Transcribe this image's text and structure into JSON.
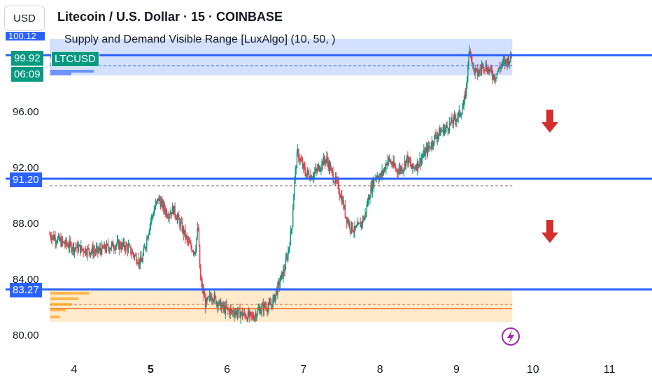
{
  "header": {
    "currency": "USD",
    "title": "Litecoin / U.S. Dollar · 15 · COINBASE",
    "indicator": "Supply and Demand Visible Range [LuxAlgo] (10, 50, )"
  },
  "price_tags": {
    "current_price": "99.92",
    "countdown": "06:09",
    "symbol": "LTCUSD",
    "top_partial": "100.12",
    "level_mid": "91.20",
    "level_low": "83.27"
  },
  "colors": {
    "up": "#089981",
    "down": "#f23645",
    "level_line": "#2962ff",
    "supply_zone": "#2962ff",
    "demand_zone": "#ff9800",
    "arrow": "#d32f2f",
    "lightning": "#9c27b0"
  },
  "chart_data": {
    "type": "candlestick",
    "title": "Litecoin / U.S. Dollar · 15 · COINBASE",
    "xlabel": "",
    "ylabel": "",
    "x_ticks": [
      "4",
      "5",
      "6",
      "7",
      "8",
      "9",
      "10",
      "11"
    ],
    "x_tick_bold": "5",
    "y_ticks": [
      "80.00",
      "84.00",
      "88.00",
      "92.00",
      "96.00"
    ],
    "ylim": [
      79.0,
      102.5
    ],
    "x_range_days": [
      3.65,
      11.75
    ],
    "price_path": [
      [
        3.68,
        87.2
      ],
      [
        3.85,
        86.6
      ],
      [
        4.0,
        86.3
      ],
      [
        4.15,
        86.1
      ],
      [
        4.3,
        86.0
      ],
      [
        4.45,
        86.3
      ],
      [
        4.55,
        86.5
      ],
      [
        4.7,
        86.3
      ],
      [
        4.8,
        85.6
      ],
      [
        4.88,
        85.2
      ],
      [
        4.93,
        86.4
      ],
      [
        5.0,
        88.2
      ],
      [
        5.05,
        89.0
      ],
      [
        5.1,
        89.8
      ],
      [
        5.15,
        89.3
      ],
      [
        5.22,
        88.7
      ],
      [
        5.3,
        89.0
      ],
      [
        5.4,
        87.8
      ],
      [
        5.5,
        86.5
      ],
      [
        5.58,
        86.0
      ],
      [
        5.62,
        87.8
      ],
      [
        5.65,
        84.0
      ],
      [
        5.72,
        82.2
      ],
      [
        5.8,
        82.9
      ],
      [
        5.88,
        82.3
      ],
      [
        5.95,
        81.9
      ],
      [
        6.05,
        81.7
      ],
      [
        6.15,
        81.6
      ],
      [
        6.25,
        81.4
      ],
      [
        6.33,
        81.3
      ],
      [
        6.42,
        81.8
      ],
      [
        6.5,
        82.1
      ],
      [
        6.55,
        82.0
      ],
      [
        6.6,
        82.4
      ],
      [
        6.65,
        83.2
      ],
      [
        6.7,
        84.0
      ],
      [
        6.75,
        84.7
      ],
      [
        6.8,
        86.0
      ],
      [
        6.85,
        88.0
      ],
      [
        6.88,
        91.0
      ],
      [
        6.92,
        93.1
      ],
      [
        6.97,
        92.3
      ],
      [
        7.03,
        91.6
      ],
      [
        7.1,
        91.4
      ],
      [
        7.18,
        91.8
      ],
      [
        7.25,
        92.4
      ],
      [
        7.3,
        92.6
      ],
      [
        7.37,
        91.6
      ],
      [
        7.43,
        90.9
      ],
      [
        7.5,
        89.8
      ],
      [
        7.55,
        88.6
      ],
      [
        7.6,
        87.9
      ],
      [
        7.67,
        87.5
      ],
      [
        7.73,
        87.8
      ],
      [
        7.8,
        88.5
      ],
      [
        7.85,
        89.8
      ],
      [
        7.9,
        90.8
      ],
      [
        7.95,
        91.5
      ],
      [
        8.0,
        91.3
      ],
      [
        8.05,
        91.8
      ],
      [
        8.1,
        92.6
      ],
      [
        8.18,
        92.1
      ],
      [
        8.22,
        91.8
      ],
      [
        8.3,
        92.0
      ],
      [
        8.35,
        92.7
      ],
      [
        8.42,
        91.9
      ],
      [
        8.5,
        92.3
      ],
      [
        8.58,
        93.0
      ],
      [
        8.65,
        93.5
      ],
      [
        8.72,
        94.2
      ],
      [
        8.8,
        94.6
      ],
      [
        8.88,
        94.9
      ],
      [
        8.95,
        95.3
      ],
      [
        9.0,
        95.6
      ],
      [
        9.05,
        95.9
      ],
      [
        9.1,
        96.6
      ],
      [
        9.13,
        97.8
      ],
      [
        9.15,
        99.5
      ],
      [
        9.18,
        100.6
      ],
      [
        9.22,
        99.0
      ],
      [
        9.28,
        98.7
      ],
      [
        9.35,
        99.4
      ],
      [
        9.42,
        99.0
      ],
      [
        9.5,
        98.5
      ],
      [
        9.58,
        99.3
      ],
      [
        9.65,
        99.6
      ],
      [
        9.72,
        99.92
      ]
    ],
    "levels": [
      {
        "value": 100.05,
        "label": ""
      },
      {
        "value": 91.2,
        "label": "91.20"
      },
      {
        "value": 83.27,
        "label": "83.27"
      }
    ],
    "equilibrium_dashed": [
      99.3,
      90.7,
      82.2
    ],
    "demand_solid": 81.9,
    "supply_zone": [
      98.6,
      101.2
    ],
    "demand_zone": [
      80.95,
      83.2
    ],
    "zone_x_range": [
      3.68,
      9.73
    ]
  }
}
